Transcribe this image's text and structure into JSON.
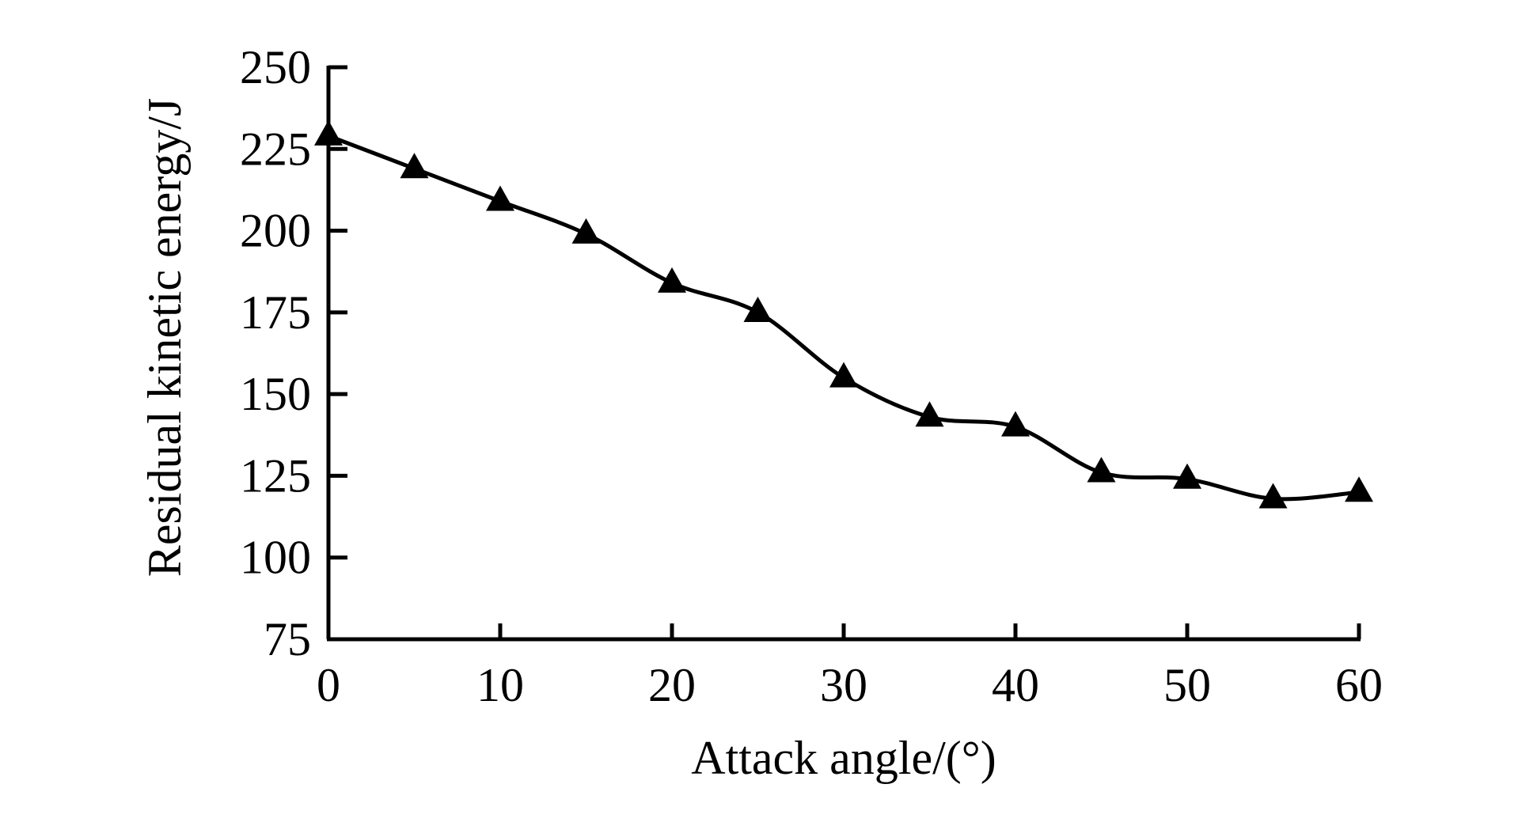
{
  "chart_data": {
    "type": "line",
    "title": "",
    "xlabel": "Attack angle/(°)",
    "ylabel": "Residual kinetic energy/J",
    "xlim": [
      0,
      60
    ],
    "ylim": [
      75,
      250
    ],
    "xticks": [
      0,
      10,
      20,
      30,
      40,
      50,
      60
    ],
    "yticks": [
      75,
      100,
      125,
      150,
      175,
      200,
      225,
      250
    ],
    "grid": false,
    "legend": "none",
    "series": [
      {
        "marker": "triangle",
        "color": "#000000",
        "x": [
          0,
          5,
          10,
          15,
          20,
          25,
          30,
          35,
          40,
          45,
          50,
          55,
          60
        ],
        "y": [
          229,
          219,
          209,
          199,
          184,
          175,
          155,
          143,
          140,
          126,
          124,
          118,
          120
        ]
      }
    ]
  }
}
